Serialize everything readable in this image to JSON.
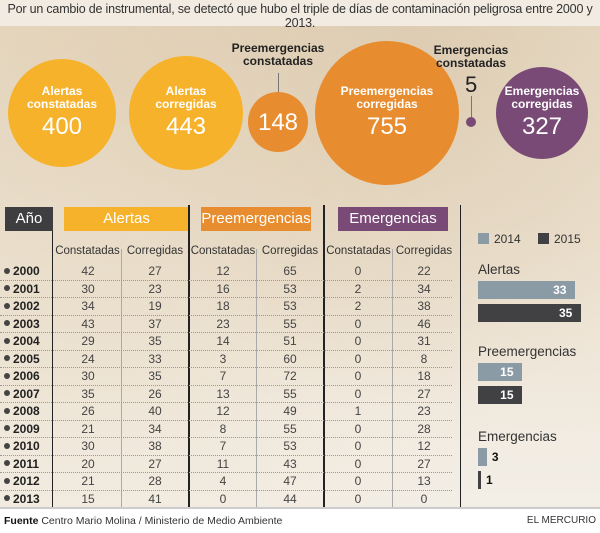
{
  "subtitle": "Por un cambio de instrumental, se detectó que hubo el triple de días de contaminación peligrosa entre 2000 y 2013.",
  "colors": {
    "alertas": "#f7b22c",
    "preemergencias": "#e88d2f",
    "emergencias": "#7a4a77",
    "year_header": "#3e3e40",
    "bar_2014": "#8b9ba6",
    "bar_2015": "#414144"
  },
  "totals": [
    {
      "key": "alertas_constatadas",
      "label_line1": "Alertas",
      "label_line2": "constatadas",
      "value": "400",
      "color_key": "alertas"
    },
    {
      "key": "alertas_corregidas",
      "label_line1": "Alertas",
      "label_line2": "corregidas",
      "value": "443",
      "color_key": "alertas"
    },
    {
      "key": "preemergencias_constatadas",
      "label_line1": "Preemergencias",
      "label_line2": "constatadas",
      "value": "148",
      "color_key": "preemergencias"
    },
    {
      "key": "preemergencias_corregidas",
      "label_line1": "Preemergencias",
      "label_line2": "corregidas",
      "value": "755",
      "color_key": "preemergencias"
    },
    {
      "key": "emergencias_constatadas",
      "label_line1": "Emergencias",
      "label_line2": "constatadas",
      "value": "5",
      "color_key": "emergencias"
    },
    {
      "key": "emergencias_corregidas",
      "label_line1": "Emergencias",
      "label_line2": "corregidas",
      "value": "327",
      "color_key": "emergencias"
    }
  ],
  "table": {
    "year_header": "Año",
    "groups": [
      "Alertas",
      "Preemergencias",
      "Emergencias"
    ],
    "sub_headers": [
      "Constatadas",
      "Corregidas",
      "Constatadas",
      "Corregidas",
      "Constatadas",
      "Corregidas"
    ],
    "rows": [
      {
        "year": "2000",
        "values": [
          42,
          27,
          12,
          65,
          0,
          22
        ]
      },
      {
        "year": "2001",
        "values": [
          30,
          23,
          16,
          53,
          2,
          34
        ]
      },
      {
        "year": "2002",
        "values": [
          34,
          19,
          18,
          53,
          2,
          38
        ]
      },
      {
        "year": "2003",
        "values": [
          43,
          37,
          23,
          55,
          0,
          46
        ]
      },
      {
        "year": "2004",
        "values": [
          29,
          35,
          14,
          51,
          0,
          31
        ]
      },
      {
        "year": "2005",
        "values": [
          24,
          33,
          3,
          60,
          0,
          8
        ]
      },
      {
        "year": "2006",
        "values": [
          30,
          35,
          7,
          72,
          0,
          18
        ]
      },
      {
        "year": "2007",
        "values": [
          35,
          26,
          13,
          55,
          0,
          27
        ]
      },
      {
        "year": "2008",
        "values": [
          26,
          40,
          12,
          49,
          1,
          23
        ]
      },
      {
        "year": "2009",
        "values": [
          21,
          34,
          8,
          55,
          0,
          28
        ]
      },
      {
        "year": "2010",
        "values": [
          30,
          38,
          7,
          53,
          0,
          12
        ]
      },
      {
        "year": "2011",
        "values": [
          20,
          27,
          11,
          43,
          0,
          27
        ]
      },
      {
        "year": "2012",
        "values": [
          21,
          28,
          4,
          47,
          0,
          13
        ]
      },
      {
        "year": "2013",
        "values": [
          15,
          41,
          0,
          44,
          0,
          0
        ]
      }
    ]
  },
  "chart_data": {
    "type": "bar",
    "orientation": "horizontal",
    "categories": [
      "Alertas",
      "Preemergencias",
      "Emergencias"
    ],
    "series": [
      {
        "name": "2014",
        "values": [
          33,
          15,
          3
        ]
      },
      {
        "name": "2015",
        "values": [
          35,
          15,
          1
        ]
      }
    ],
    "legend": [
      "2014",
      "2015"
    ],
    "legend_position": "top",
    "xlim": [
      0,
      35
    ]
  },
  "footer": {
    "source_label": "Fuente",
    "source_text": "Centro Mario Molina / Ministerio de Medio Ambiente",
    "brand": "EL MERCURIO"
  }
}
